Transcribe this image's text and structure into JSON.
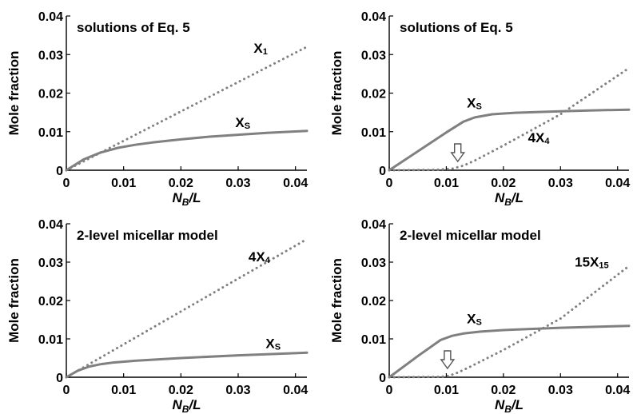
{
  "colors": {
    "axis": "#000000",
    "series": "#808080",
    "arrow_fill": "#ffffff",
    "arrow_stroke": "#555555"
  },
  "chart_data": [
    {
      "type": "line",
      "title": "solutions of Eq. 5",
      "xlabel_main": "N",
      "xlabel_sub": "B",
      "xlabel_tail": "/L",
      "ylabel": "Mole fraction",
      "xlim": [
        0,
        0.042
      ],
      "ylim": [
        0,
        0.04
      ],
      "xticks": [
        0,
        0.01,
        0.02,
        0.03,
        0.04
      ],
      "xtick_labels": [
        "0",
        "0.01",
        "0.02",
        "0.03",
        "0.04"
      ],
      "yticks": [
        0,
        0.01,
        0.02,
        0.03,
        0.04
      ],
      "ytick_labels": [
        "0",
        "0.01",
        "0.02",
        "0.03",
        "0.04"
      ],
      "grid": false,
      "series": [
        {
          "label_main": "X",
          "label_sub": "S",
          "style": "solid",
          "x": [
            0,
            0.003,
            0.006,
            0.009,
            0.012,
            0.015,
            0.02,
            0.025,
            0.03,
            0.035,
            0.042
          ],
          "y": [
            0,
            0.0028,
            0.0046,
            0.0058,
            0.0066,
            0.0072,
            0.008,
            0.0087,
            0.0092,
            0.0097,
            0.0102
          ],
          "label_at": [
            0.0295,
            0.0112
          ]
        },
        {
          "label_main": "X",
          "label_sub": "1",
          "style": "dotted",
          "x": [
            0,
            0.042
          ],
          "y": [
            0,
            0.032
          ],
          "label_at": [
            0.0327,
            0.0305
          ]
        }
      ],
      "arrow_x": null
    },
    {
      "type": "line",
      "title": "solutions of Eq. 5",
      "xlabel_main": "N",
      "xlabel_sub": "B",
      "xlabel_tail": "/L",
      "ylabel": "Mole fraction",
      "xlim": [
        0,
        0.042
      ],
      "ylim": [
        0,
        0.04
      ],
      "xticks": [
        0,
        0.01,
        0.02,
        0.03,
        0.04
      ],
      "xtick_labels": [
        "0",
        "0.01",
        "0.02",
        "0.03",
        "0.04"
      ],
      "yticks": [
        0,
        0.01,
        0.02,
        0.03,
        0.04
      ],
      "ytick_labels": [
        "0",
        "0.01",
        "0.02",
        "0.03",
        "0.04"
      ],
      "grid": false,
      "series": [
        {
          "label_main": "X",
          "label_sub": "S",
          "style": "solid",
          "x": [
            0,
            0.005,
            0.01,
            0.013,
            0.015,
            0.018,
            0.022,
            0.03,
            0.035,
            0.042
          ],
          "y": [
            0,
            0.0049,
            0.0098,
            0.0126,
            0.0137,
            0.0145,
            0.0149,
            0.0153,
            0.0155,
            0.0157
          ],
          "label_at": [
            0.0136,
            0.0163
          ]
        },
        {
          "label_main": "4X",
          "label_sub": "4",
          "style": "dotted",
          "x": [
            0,
            0.008,
            0.011,
            0.013,
            0.015,
            0.02,
            0.03,
            0.042
          ],
          "y": [
            0,
            0.0001,
            0.0004,
            0.0012,
            0.0025,
            0.0064,
            0.0145,
            0.0265
          ],
          "label_at": [
            0.0243,
            0.0073
          ]
        }
      ],
      "arrow_x": 0.012
    },
    {
      "type": "line",
      "title": "2-level micellar model",
      "xlabel_main": "N",
      "xlabel_sub": "B",
      "xlabel_tail": "/L",
      "ylabel": "Mole fraction",
      "xlim": [
        0,
        0.042
      ],
      "ylim": [
        0,
        0.04
      ],
      "xticks": [
        0,
        0.01,
        0.02,
        0.03,
        0.04
      ],
      "xtick_labels": [
        "0",
        "0.01",
        "0.02",
        "0.03",
        "0.04"
      ],
      "yticks": [
        0,
        0.01,
        0.02,
        0.03,
        0.04
      ],
      "ytick_labels": [
        "0",
        "0.01",
        "0.02",
        "0.03",
        "0.04"
      ],
      "grid": false,
      "series": [
        {
          "label_main": "X",
          "label_sub": "S",
          "style": "solid",
          "x": [
            0,
            0.002,
            0.004,
            0.006,
            0.008,
            0.012,
            0.02,
            0.03,
            0.042
          ],
          "y": [
            0,
            0.0017,
            0.0028,
            0.0034,
            0.0038,
            0.0043,
            0.005,
            0.0057,
            0.0064
          ],
          "label_at": [
            0.0348,
            0.0076
          ]
        },
        {
          "label_main": "4X",
          "label_sub": "4",
          "style": "dotted",
          "x": [
            0,
            0.042
          ],
          "y": [
            0,
            0.036
          ],
          "label_at": [
            0.0318,
            0.0302
          ]
        }
      ],
      "arrow_x": null
    },
    {
      "type": "line",
      "title": "2-level micellar model",
      "xlabel_main": "N",
      "xlabel_sub": "B",
      "xlabel_tail": "/L",
      "ylabel": "Mole fraction",
      "xlim": [
        0,
        0.042
      ],
      "ylim": [
        0,
        0.04
      ],
      "xticks": [
        0,
        0.01,
        0.02,
        0.03,
        0.04
      ],
      "xtick_labels": [
        "0",
        "0.01",
        "0.02",
        "0.03",
        "0.04"
      ],
      "yticks": [
        0,
        0.01,
        0.02,
        0.03,
        0.04
      ],
      "ytick_labels": [
        "0",
        "0.01",
        "0.02",
        "0.03",
        "0.04"
      ],
      "grid": false,
      "series": [
        {
          "label_main": "X",
          "label_sub": "S",
          "style": "solid",
          "x": [
            0,
            0.005,
            0.009,
            0.011,
            0.013,
            0.016,
            0.02,
            0.03,
            0.042
          ],
          "y": [
            0,
            0.0055,
            0.0097,
            0.0108,
            0.0114,
            0.0119,
            0.0123,
            0.0129,
            0.0134
          ],
          "label_at": [
            0.0136,
            0.0141
          ]
        },
        {
          "label_main": "15X",
          "label_sub": "15",
          "style": "dotted",
          "x": [
            0,
            0.009,
            0.0105,
            0.012,
            0.014,
            0.02,
            0.03,
            0.042
          ],
          "y": [
            0,
            0.0001,
            0.0004,
            0.0012,
            0.0026,
            0.0071,
            0.0153,
            0.029
          ],
          "label_at": [
            0.0325,
            0.0289
          ]
        }
      ],
      "arrow_x": 0.0102
    }
  ]
}
